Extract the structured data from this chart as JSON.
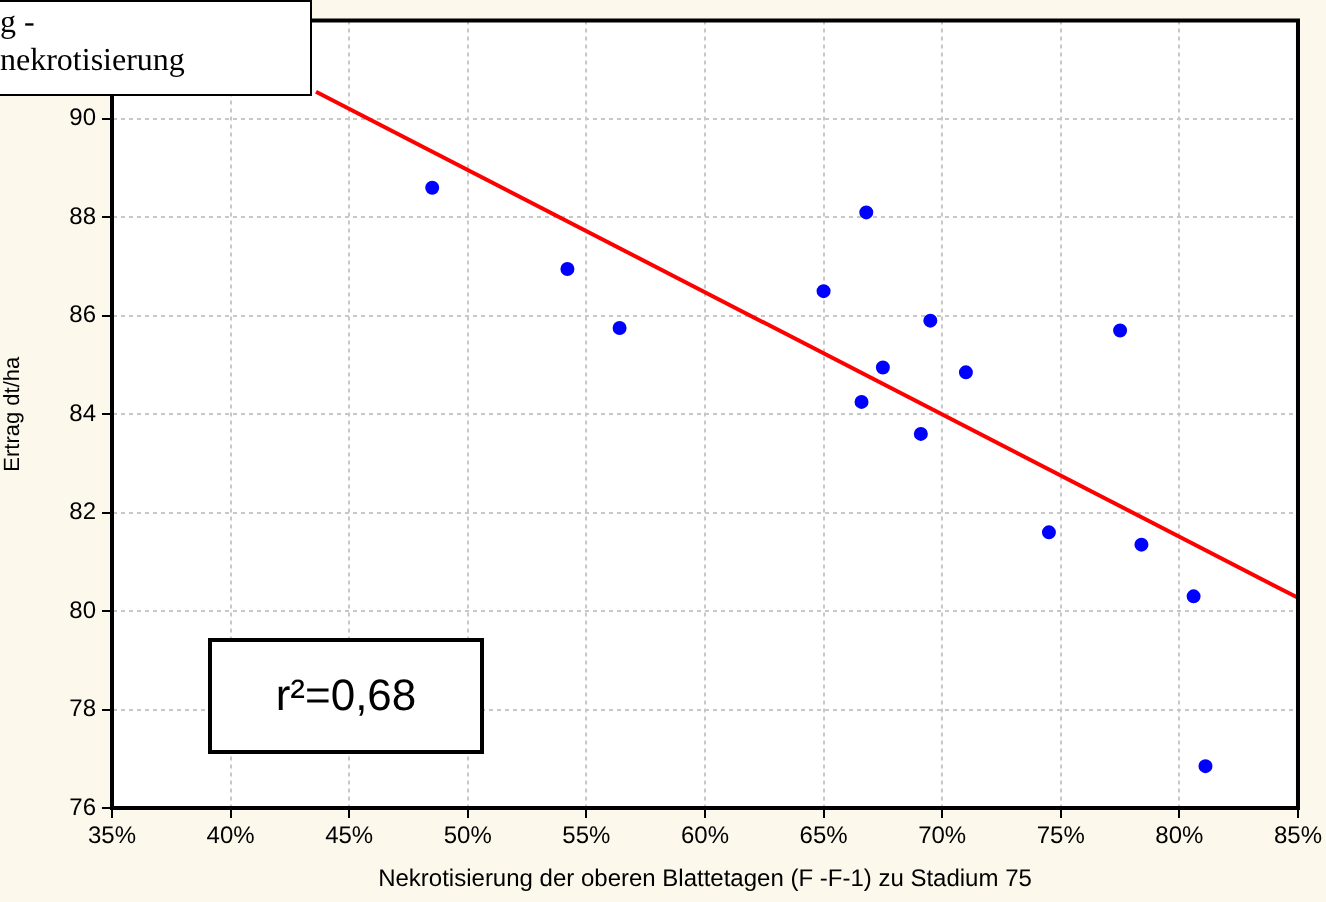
{
  "chart_data": {
    "type": "scatter",
    "title": "g -\nnekrotisierung",
    "xlabel": "Nekrotisierung der oberen Blattetagen (F -F-1) zu Stadium 75",
    "ylabel": "Ertrag dt/ha",
    "annotations": [
      "r²=0,68"
    ],
    "xlim": [
      35,
      85
    ],
    "xticks": [
      {
        "value": 35,
        "label": "35%"
      },
      {
        "value": 40,
        "label": "40%"
      },
      {
        "value": 45,
        "label": "45%"
      },
      {
        "value": 50,
        "label": "50%"
      },
      {
        "value": 55,
        "label": "55%"
      },
      {
        "value": 60,
        "label": "60%"
      },
      {
        "value": 65,
        "label": "65%"
      },
      {
        "value": 70,
        "label": "70%"
      },
      {
        "value": 75,
        "label": "75%"
      },
      {
        "value": 80,
        "label": "80%"
      },
      {
        "value": 85,
        "label": "85%"
      }
    ],
    "ylim": [
      76,
      92
    ],
    "yticks": [
      76,
      78,
      80,
      82,
      84,
      86,
      88,
      90
    ],
    "grid": true,
    "legend": false,
    "marker": "circle",
    "series": [
      {
        "color": "#0000ff",
        "x": [
          48.5,
          54.2,
          56.4,
          66.8,
          65.0,
          69.5,
          77.5,
          67.5,
          71.0,
          66.6,
          69.1,
          74.5,
          78.4,
          80.6,
          81.1
        ],
        "values": [
          88.6,
          86.95,
          85.75,
          88.1,
          86.5,
          85.9,
          85.7,
          84.95,
          84.85,
          84.25,
          83.6,
          81.6,
          81.35,
          80.3,
          76.85
        ]
      },
      {
        "type": "line",
        "color": "#ff0000",
        "marker": "none",
        "x": [
          43.6,
          85
        ],
        "values": [
          90.55,
          80.27
        ]
      }
    ]
  }
}
